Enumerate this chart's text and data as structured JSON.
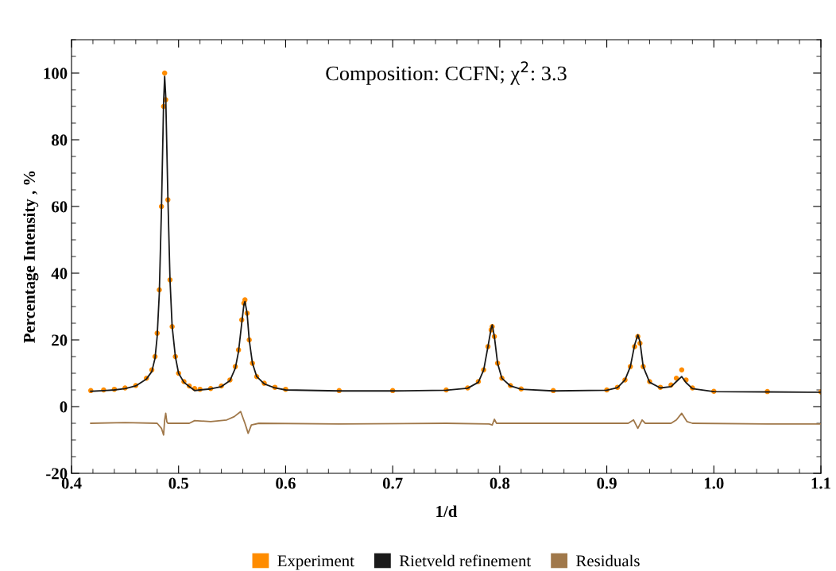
{
  "chart_data": {
    "type": "scatter",
    "title": "Composition: CCFN; χ$^{2}$: 3.3",
    "xlabel": "1/d",
    "ylabel": "Percentage Intensity , %",
    "xlim": [
      0.4,
      1.1
    ],
    "xticks": [
      0.4,
      0.5,
      0.6,
      0.7,
      0.8,
      0.9,
      {
        "value": 1.0,
        "label": "1.0"
      },
      {
        "value": 1.1,
        "label": "1.1"
      }
    ],
    "ylim": [
      -20,
      110
    ],
    "yticks": [
      -20,
      0,
      20,
      40,
      60,
      80,
      100
    ],
    "grid": false,
    "legend": "bottom",
    "series": [
      {
        "name": "Experiment",
        "marker": "circle",
        "color": "#ff8c00",
        "x": [
          0.418,
          0.43,
          0.44,
          0.45,
          0.46,
          0.47,
          0.475,
          0.478,
          0.48,
          0.482,
          0.484,
          0.486,
          0.487,
          0.488,
          0.49,
          0.492,
          0.494,
          0.497,
          0.5,
          0.505,
          0.51,
          0.515,
          0.52,
          0.53,
          0.54,
          0.548,
          0.553,
          0.556,
          0.559,
          0.561,
          0.562,
          0.564,
          0.566,
          0.569,
          0.573,
          0.58,
          0.59,
          0.6,
          0.65,
          0.7,
          0.75,
          0.77,
          0.78,
          0.785,
          0.789,
          0.792,
          0.793,
          0.795,
          0.798,
          0.802,
          0.81,
          0.82,
          0.85,
          0.9,
          0.91,
          0.917,
          0.922,
          0.926,
          0.929,
          0.931,
          0.934,
          0.94,
          0.95,
          0.96,
          0.965,
          0.97,
          0.974,
          0.98,
          1.0,
          1.05,
          1.1
        ],
        "values": [
          4.8,
          5.0,
          5.2,
          5.6,
          6.3,
          8.5,
          11,
          15,
          22,
          35,
          60,
          90,
          100,
          92,
          62,
          38,
          24,
          15,
          10,
          7.5,
          6.2,
          5.4,
          5.2,
          5.4,
          6.2,
          8,
          12,
          17,
          26,
          31,
          32,
          28,
          20,
          13,
          9,
          7,
          5.8,
          5.2,
          4.8,
          4.8,
          5.0,
          5.6,
          7.5,
          11,
          18,
          23,
          24,
          21,
          13,
          8.5,
          6.3,
          5.3,
          4.8,
          5.0,
          5.8,
          8,
          12,
          18,
          21,
          19,
          12,
          7.5,
          5.8,
          6.5,
          8.5,
          11,
          8,
          5.6,
          4.6,
          4.5,
          4.4
        ]
      },
      {
        "name": "Rietveld refinement",
        "type": "line",
        "color": "#1a1a1a",
        "x": [
          0.418,
          0.43,
          0.44,
          0.45,
          0.46,
          0.47,
          0.475,
          0.478,
          0.48,
          0.482,
          0.484,
          0.486,
          0.487,
          0.488,
          0.49,
          0.492,
          0.494,
          0.497,
          0.5,
          0.505,
          0.51,
          0.515,
          0.52,
          0.53,
          0.54,
          0.548,
          0.553,
          0.556,
          0.559,
          0.561,
          0.562,
          0.564,
          0.566,
          0.569,
          0.573,
          0.58,
          0.59,
          0.6,
          0.65,
          0.7,
          0.75,
          0.77,
          0.78,
          0.785,
          0.789,
          0.792,
          0.793,
          0.795,
          0.798,
          0.802,
          0.81,
          0.82,
          0.85,
          0.9,
          0.91,
          0.917,
          0.922,
          0.926,
          0.929,
          0.931,
          0.934,
          0.94,
          0.95,
          0.96,
          0.965,
          0.97,
          0.974,
          0.98,
          1.0,
          1.05,
          1.1
        ],
        "values": [
          4.6,
          4.8,
          5.0,
          5.4,
          6.2,
          8.3,
          10.5,
          14.5,
          21,
          34,
          59,
          91,
          99,
          93,
          63,
          38,
          24,
          15,
          10,
          7.3,
          6.0,
          4.8,
          5.0,
          5.3,
          6.0,
          7.8,
          11.5,
          16.5,
          25,
          30.5,
          31.5,
          28,
          20,
          13,
          9,
          6.8,
          5.6,
          5.0,
          4.7,
          4.7,
          4.9,
          5.5,
          7.3,
          11,
          18,
          23.5,
          24.5,
          21,
          13,
          8.5,
          6.2,
          5.2,
          4.7,
          4.9,
          5.7,
          8,
          12,
          18.5,
          21.5,
          19.5,
          12,
          7.3,
          5.6,
          6.0,
          7.5,
          9,
          7.2,
          5.4,
          4.5,
          4.4,
          4.3
        ]
      },
      {
        "name": "Residuals",
        "type": "line",
        "color": "#a0784a",
        "x": [
          0.418,
          0.45,
          0.48,
          0.484,
          0.486,
          0.487,
          0.488,
          0.489,
          0.49,
          0.51,
          0.515,
          0.53,
          0.545,
          0.552,
          0.558,
          0.562,
          0.565,
          0.568,
          0.575,
          0.65,
          0.75,
          0.79,
          0.793,
          0.795,
          0.797,
          0.85,
          0.92,
          0.925,
          0.929,
          0.933,
          0.936,
          0.94,
          0.96,
          0.965,
          0.97,
          0.975,
          0.98,
          1.05,
          1.1
        ],
        "values": [
          -5,
          -4.8,
          -5,
          -6.5,
          -8.5,
          -4,
          -2,
          -4.5,
          -5,
          -5,
          -4.2,
          -4.5,
          -4,
          -3,
          -1.5,
          -5,
          -8,
          -5.5,
          -5,
          -5.2,
          -5,
          -5.2,
          -5.5,
          -3.8,
          -5,
          -5,
          -5,
          -4,
          -6.5,
          -4,
          -5,
          -5,
          -5,
          -4,
          -2,
          -4.5,
          -5,
          -5.2,
          -5.2
        ]
      }
    ]
  }
}
